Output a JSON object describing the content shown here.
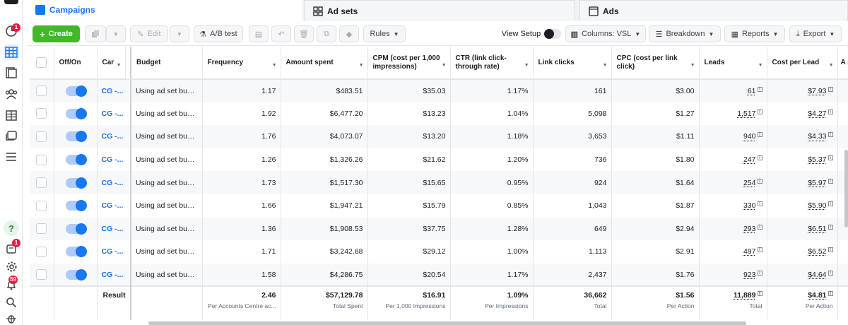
{
  "tabs": {
    "campaigns": "Campaigns",
    "adsets": "Ad sets",
    "ads": "Ads"
  },
  "toolbar": {
    "create": "Create",
    "edit": "Edit",
    "ab_test": "A/B test",
    "rules": "Rules",
    "view_setup": "View Setup",
    "columns": "Columns: VSL",
    "breakdown": "Breakdown",
    "reports": "Reports",
    "export": "Export"
  },
  "badges": {
    "top": "1",
    "mid": "1",
    "notifications": "59"
  },
  "columns": {
    "offon": "Off/On",
    "car": "Car",
    "budget": "Budget",
    "frequency": "Frequency",
    "amount_spent": "Amount spent",
    "cpm": "CPM (cost per 1,000 impressions)",
    "ctr": "CTR (link click-through rate)",
    "link_clicks": "Link clicks",
    "cpc": "CPC (cost per link click)",
    "leads": "Leads",
    "cost_per_lead": "Cost per Lead",
    "next": "A s"
  },
  "rows": [
    {
      "car": "CG -...",
      "budget": "Using ad set bud...",
      "frequency": "1.17",
      "amount_spent": "$483.51",
      "cpm": "$35.03",
      "ctr": "1.17%",
      "link_clicks": "161",
      "cpc": "$3.00",
      "leads": "61",
      "cost_per_lead": "$7.93"
    },
    {
      "car": "CG -...",
      "budget": "Using ad set bud...",
      "frequency": "1.92",
      "amount_spent": "$6,477.20",
      "cpm": "$13.23",
      "ctr": "1.04%",
      "link_clicks": "5,098",
      "cpc": "$1.27",
      "leads": "1,517",
      "cost_per_lead": "$4.27"
    },
    {
      "car": "CG -...",
      "budget": "Using ad set bud...",
      "frequency": "1.76",
      "amount_spent": "$4,073.07",
      "cpm": "$13.20",
      "ctr": "1.18%",
      "link_clicks": "3,653",
      "cpc": "$1.11",
      "leads": "940",
      "cost_per_lead": "$4.33"
    },
    {
      "car": "CG -...",
      "budget": "Using ad set bud...",
      "frequency": "1.26",
      "amount_spent": "$1,326.26",
      "cpm": "$21.62",
      "ctr": "1.20%",
      "link_clicks": "736",
      "cpc": "$1.80",
      "leads": "247",
      "cost_per_lead": "$5.37"
    },
    {
      "car": "CG -...",
      "budget": "Using ad set bud...",
      "frequency": "1.73",
      "amount_spent": "$1,517.30",
      "cpm": "$15.65",
      "ctr": "0.95%",
      "link_clicks": "924",
      "cpc": "$1.64",
      "leads": "254",
      "cost_per_lead": "$5.97"
    },
    {
      "car": "CG -...",
      "budget": "Using ad set bud...",
      "frequency": "1.66",
      "amount_spent": "$1,947.21",
      "cpm": "$15.79",
      "ctr": "0.85%",
      "link_clicks": "1,043",
      "cpc": "$1.87",
      "leads": "330",
      "cost_per_lead": "$5.90"
    },
    {
      "car": "CG -...",
      "budget": "Using ad set bud...",
      "frequency": "1.36",
      "amount_spent": "$1,908.53",
      "cpm": "$37.75",
      "ctr": "1.28%",
      "link_clicks": "649",
      "cpc": "$2.94",
      "leads": "293",
      "cost_per_lead": "$6.51"
    },
    {
      "car": "CG -...",
      "budget": "Using ad set bud...",
      "frequency": "1.71",
      "amount_spent": "$3,242.68",
      "cpm": "$29.12",
      "ctr": "1.00%",
      "link_clicks": "1,113",
      "cpc": "$2.91",
      "leads": "497",
      "cost_per_lead": "$6.52"
    },
    {
      "car": "CG -...",
      "budget": "Using ad set bud...",
      "frequency": "1.58",
      "amount_spent": "$4,286.75",
      "cpm": "$20.54",
      "ctr": "1.17%",
      "link_clicks": "2,437",
      "cpc": "$1.76",
      "leads": "923",
      "cost_per_lead": "$4.64"
    }
  ],
  "totals": {
    "label": "Result",
    "frequency": "2.46",
    "frequency_sub": "Per Accounts Centre ac...",
    "amount_spent": "$57,129.78",
    "amount_spent_sub": "Total Spent",
    "cpm": "$16.91",
    "cpm_sub": "Per 1,000 Impressions",
    "ctr": "1.09%",
    "ctr_sub": "Per Impressions",
    "link_clicks": "36,662",
    "link_clicks_sub": "Total",
    "cpc": "$1.56",
    "cpc_sub": "Per Action",
    "leads": "11,889",
    "leads_sub": "Total",
    "cost_per_lead": "$4.81",
    "cost_per_lead_sub": "Per Action"
  },
  "colors": {
    "accent": "#1877f2",
    "create": "#42b72a",
    "link": "#216fdb",
    "badge": "#e41e3f"
  }
}
